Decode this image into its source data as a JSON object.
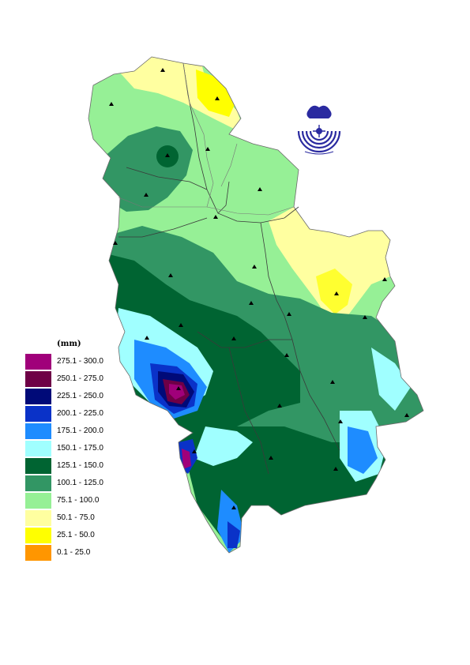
{
  "legend": {
    "unit": "(mm)",
    "classes": [
      {
        "label": "275.1 - 300.0",
        "color": "#a0007a"
      },
      {
        "label": "250.1 - 275.0",
        "color": "#6e0046"
      },
      {
        "label": "225.1 - 250.0",
        "color": "#000a78"
      },
      {
        "label": "200.1 - 225.0",
        "color": "#0a32c8"
      },
      {
        "label": "175.1 - 200.0",
        "color": "#1e8cff"
      },
      {
        "label": "150.1 - 175.0",
        "color": "#a0ffff"
      },
      {
        "label": "125.1 - 150.0",
        "color": "#006432"
      },
      {
        "label": "100.1 - 125.0",
        "color": "#329664"
      },
      {
        "label": "75.1 - 100.0",
        "color": "#96f096"
      },
      {
        "label": "50.1 - 75.0",
        "color": "#ffffa0"
      },
      {
        "label": "25.1 - 50.0",
        "color": "#ffff00"
      },
      {
        "label": "0.1 - 25.0",
        "color": "#ff9600"
      }
    ]
  },
  "map": {
    "station_marker": "triangle-icon",
    "logo": "hydrometeorological-service-logo"
  }
}
